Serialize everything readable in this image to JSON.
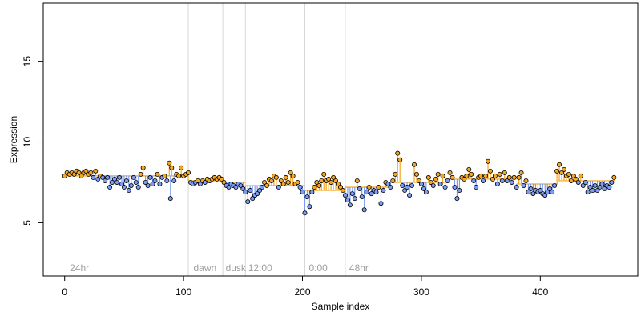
{
  "chart_data": {
    "type": "scatter",
    "xlabel": "Sample index",
    "ylabel": "Expression",
    "xlim": [
      -18,
      482
    ],
    "ylim": [
      1.7,
      18.6
    ],
    "x_ticks": [
      0,
      100,
      200,
      300,
      400
    ],
    "y_ticks": [
      5,
      10,
      15
    ],
    "grid": false,
    "baseline_segments": [
      {
        "x0": 0,
        "x1": 104,
        "y": 7.9
      },
      {
        "x0": 104,
        "x1": 133,
        "y": 7.6
      },
      {
        "x0": 133,
        "x1": 152,
        "y": 7.5
      },
      {
        "x0": 152,
        "x1": 202,
        "y": 7.3
      },
      {
        "x0": 202,
        "x1": 236,
        "y": 7.0
      },
      {
        "x0": 236,
        "x1": 272,
        "y": 7.2
      },
      {
        "x0": 272,
        "x1": 320,
        "y": 7.5
      },
      {
        "x0": 320,
        "x1": 380,
        "y": 7.7
      },
      {
        "x0": 380,
        "x1": 415,
        "y": 7.4
      },
      {
        "x0": 415,
        "x1": 462,
        "y": 7.6
      }
    ],
    "condition_separators": [
      104,
      133,
      152,
      202,
      236
    ],
    "condition_labels": [
      {
        "text": "24hr",
        "x": 3
      },
      {
        "text": "dawn",
        "x": 107
      },
      {
        "text": "dusk",
        "x": 134
      },
      {
        "text": "12:00",
        "x": 153
      },
      {
        "text": "0:00",
        "x": 204
      },
      {
        "text": "48hr",
        "x": 238
      }
    ],
    "colors": {
      "above": "#f5a623",
      "below": "#7b9cf0",
      "separator": "#d8d8d8",
      "label": "#a0a0a0"
    },
    "series": [
      {
        "values": [
          [
            0,
            7.9
          ],
          [
            2,
            8.1
          ],
          [
            4,
            8.0
          ],
          [
            6,
            8.1
          ],
          [
            8,
            8.0
          ],
          [
            10,
            8.2
          ],
          [
            12,
            8.1
          ],
          [
            14,
            7.9
          ],
          [
            16,
            8.1
          ],
          [
            18,
            8.2
          ],
          [
            20,
            8.0
          ],
          [
            22,
            8.1
          ],
          [
            24,
            7.8
          ],
          [
            26,
            8.2
          ],
          [
            28,
            7.7
          ],
          [
            30,
            7.9
          ],
          [
            32,
            7.8
          ],
          [
            34,
            7.6
          ],
          [
            36,
            7.8
          ],
          [
            38,
            7.2
          ],
          [
            40,
            7.5
          ],
          [
            42,
            7.7
          ],
          [
            44,
            7.5
          ],
          [
            46,
            7.8
          ],
          [
            48,
            7.4
          ],
          [
            50,
            7.2
          ],
          [
            52,
            7.6
          ],
          [
            54,
            7.0
          ],
          [
            56,
            7.3
          ],
          [
            58,
            7.8
          ],
          [
            60,
            7.5
          ],
          [
            62,
            7.2
          ],
          [
            64,
            8.0
          ],
          [
            66,
            8.4
          ],
          [
            68,
            7.5
          ],
          [
            70,
            7.3
          ],
          [
            72,
            7.8
          ],
          [
            74,
            7.4
          ],
          [
            76,
            7.6
          ],
          [
            78,
            8.0
          ],
          [
            80,
            7.4
          ],
          [
            82,
            7.8
          ],
          [
            84,
            7.9
          ],
          [
            86,
            7.6
          ],
          [
            88,
            8.7
          ],
          [
            89,
            6.5
          ],
          [
            90,
            8.4
          ],
          [
            92,
            7.6
          ],
          [
            94,
            8.0
          ],
          [
            96,
            7.9
          ],
          [
            98,
            8.4
          ],
          [
            100,
            7.9
          ],
          [
            102,
            8.0
          ],
          [
            104,
            8.1
          ],
          [
            106,
            7.5
          ],
          [
            108,
            7.4
          ],
          [
            110,
            7.5
          ],
          [
            112,
            7.6
          ],
          [
            114,
            7.4
          ],
          [
            116,
            7.6
          ],
          [
            118,
            7.5
          ],
          [
            120,
            7.7
          ],
          [
            122,
            7.6
          ],
          [
            124,
            7.7
          ],
          [
            126,
            7.8
          ],
          [
            128,
            7.7
          ],
          [
            130,
            7.8
          ],
          [
            132,
            7.7
          ],
          [
            134,
            7.5
          ],
          [
            136,
            7.3
          ],
          [
            138,
            7.2
          ],
          [
            140,
            7.4
          ],
          [
            142,
            7.3
          ],
          [
            144,
            7.2
          ],
          [
            146,
            7.4
          ],
          [
            148,
            7.3
          ],
          [
            150,
            7.1
          ],
          [
            152,
            6.9
          ],
          [
            154,
            6.3
          ],
          [
            156,
            7.0
          ],
          [
            158,
            6.5
          ],
          [
            160,
            6.7
          ],
          [
            162,
            6.8
          ],
          [
            164,
            7.0
          ],
          [
            166,
            7.2
          ],
          [
            168,
            7.5
          ],
          [
            170,
            7.3
          ],
          [
            172,
            7.7
          ],
          [
            174,
            7.6
          ],
          [
            176,
            7.9
          ],
          [
            178,
            7.8
          ],
          [
            180,
            7.2
          ],
          [
            182,
            7.6
          ],
          [
            184,
            7.4
          ],
          [
            186,
            7.8
          ],
          [
            188,
            7.5
          ],
          [
            190,
            8.1
          ],
          [
            192,
            7.9
          ],
          [
            194,
            7.4
          ],
          [
            196,
            7.5
          ],
          [
            198,
            7.2
          ],
          [
            200,
            6.9
          ],
          [
            202,
            5.6
          ],
          [
            204,
            6.6
          ],
          [
            206,
            6.0
          ],
          [
            208,
            6.9
          ],
          [
            210,
            7.2
          ],
          [
            212,
            7.5
          ],
          [
            214,
            7.3
          ],
          [
            216,
            7.6
          ],
          [
            218,
            8.0
          ],
          [
            220,
            7.6
          ],
          [
            222,
            7.7
          ],
          [
            224,
            7.5
          ],
          [
            226,
            7.8
          ],
          [
            228,
            7.6
          ],
          [
            230,
            7.4
          ],
          [
            232,
            7.2
          ],
          [
            234,
            7.0
          ],
          [
            236,
            6.7
          ],
          [
            238,
            6.4
          ],
          [
            240,
            6.1
          ],
          [
            242,
            6.8
          ],
          [
            244,
            6.5
          ],
          [
            246,
            7.6
          ],
          [
            248,
            7.1
          ],
          [
            250,
            6.6
          ],
          [
            252,
            5.8
          ],
          [
            254,
            6.9
          ],
          [
            256,
            7.2
          ],
          [
            258,
            6.8
          ],
          [
            260,
            7.0
          ],
          [
            262,
            6.9
          ],
          [
            264,
            7.2
          ],
          [
            266,
            6.2
          ],
          [
            268,
            7.0
          ],
          [
            270,
            7.5
          ],
          [
            272,
            7.4
          ],
          [
            274,
            7.2
          ],
          [
            276,
            7.6
          ],
          [
            278,
            8.0
          ],
          [
            280,
            9.3
          ],
          [
            282,
            8.9
          ],
          [
            284,
            7.3
          ],
          [
            286,
            7.0
          ],
          [
            288,
            7.2
          ],
          [
            290,
            6.7
          ],
          [
            292,
            7.3
          ],
          [
            294,
            8.6
          ],
          [
            296,
            8.0
          ],
          [
            298,
            7.6
          ],
          [
            300,
            7.4
          ],
          [
            302,
            7.1
          ],
          [
            304,
            6.9
          ],
          [
            306,
            7.8
          ],
          [
            308,
            7.5
          ],
          [
            310,
            7.3
          ],
          [
            312,
            7.7
          ],
          [
            314,
            8.0
          ],
          [
            316,
            7.4
          ],
          [
            318,
            7.9
          ],
          [
            320,
            7.2
          ],
          [
            322,
            7.6
          ],
          [
            324,
            8.1
          ],
          [
            326,
            7.8
          ],
          [
            328,
            7.2
          ],
          [
            330,
            6.5
          ],
          [
            332,
            7.0
          ],
          [
            334,
            7.8
          ],
          [
            336,
            7.7
          ],
          [
            338,
            7.9
          ],
          [
            340,
            8.3
          ],
          [
            342,
            8.0
          ],
          [
            344,
            7.6
          ],
          [
            346,
            7.2
          ],
          [
            348,
            7.8
          ],
          [
            350,
            7.9
          ],
          [
            352,
            7.6
          ],
          [
            354,
            7.9
          ],
          [
            356,
            8.8
          ],
          [
            358,
            8.2
          ],
          [
            360,
            7.7
          ],
          [
            362,
            7.9
          ],
          [
            364,
            7.4
          ],
          [
            366,
            8.0
          ],
          [
            368,
            7.6
          ],
          [
            370,
            8.1
          ],
          [
            372,
            7.6
          ],
          [
            374,
            7.8
          ],
          [
            376,
            7.5
          ],
          [
            378,
            7.8
          ],
          [
            380,
            7.2
          ],
          [
            382,
            7.8
          ],
          [
            384,
            8.1
          ],
          [
            386,
            7.3
          ],
          [
            388,
            7.6
          ],
          [
            390,
            6.9
          ],
          [
            392,
            7.1
          ],
          [
            394,
            6.8
          ],
          [
            396,
            7.0
          ],
          [
            398,
            6.9
          ],
          [
            400,
            7.0
          ],
          [
            402,
            6.8
          ],
          [
            404,
            6.7
          ],
          [
            406,
            6.9
          ],
          [
            408,
            7.1
          ],
          [
            410,
            6.9
          ],
          [
            412,
            7.3
          ],
          [
            414,
            8.2
          ],
          [
            416,
            8.6
          ],
          [
            418,
            8.1
          ],
          [
            420,
            8.3
          ],
          [
            422,
            7.9
          ],
          [
            424,
            8.0
          ],
          [
            426,
            7.6
          ],
          [
            428,
            7.9
          ],
          [
            430,
            7.7
          ],
          [
            432,
            7.5
          ],
          [
            434,
            7.9
          ],
          [
            436,
            7.3
          ],
          [
            438,
            7.5
          ],
          [
            440,
            6.9
          ],
          [
            442,
            7.2
          ],
          [
            444,
            7.0
          ],
          [
            446,
            7.3
          ],
          [
            448,
            7.0
          ],
          [
            450,
            7.2
          ],
          [
            452,
            7.4
          ],
          [
            454,
            7.1
          ],
          [
            456,
            7.3
          ],
          [
            458,
            7.2
          ],
          [
            460,
            7.5
          ],
          [
            462,
            7.8
          ]
        ]
      }
    ]
  }
}
